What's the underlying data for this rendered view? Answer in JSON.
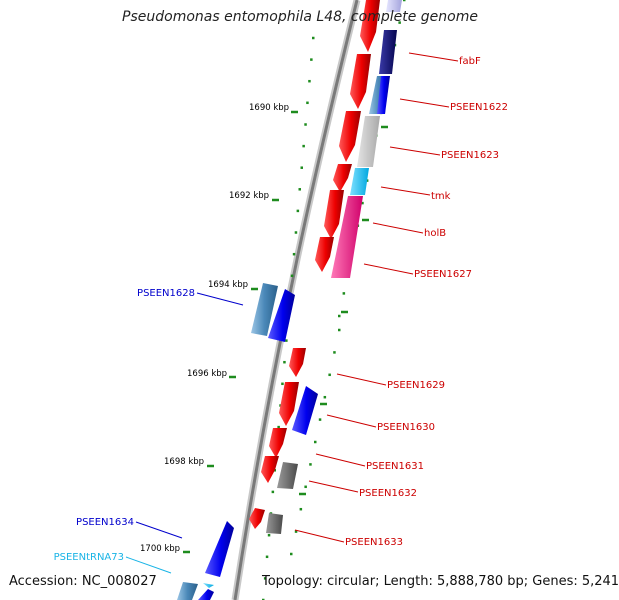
{
  "title": "Pseudomonas entomophila L48, complete genome",
  "accession": "Accession: NC_008027",
  "summary": "Topology: circular; Length: 5,888,780 bp; Genes: 5,241",
  "colors": {
    "backbone": "#7a7a7a",
    "tick": "#1e8c1e",
    "label_red": "#cc0000",
    "label_blue": "#0000cc",
    "label_cyan": "#19b4e6"
  },
  "tick_labels": [
    "1690 kbp",
    "1692 kbp",
    "1694 kbp",
    "1696 kbp",
    "1698 kbp",
    "1700 kbp"
  ],
  "gene_labels": [
    "fabF",
    "PSEEN1622",
    "PSEEN1623",
    "tmk",
    "holB",
    "PSEEN1627",
    "PSEEN1628",
    "PSEEN1629",
    "PSEEN1630",
    "PSEEN1631",
    "PSEEN1632",
    "PSEEN1633",
    "PSEEN1634",
    "PSEENtRNA73"
  ]
}
